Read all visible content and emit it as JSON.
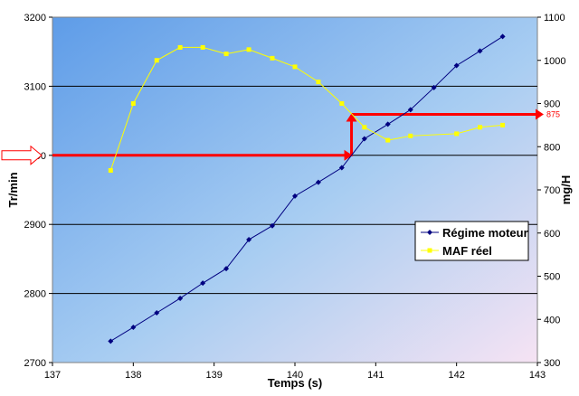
{
  "chart_data": {
    "type": "line",
    "title": "",
    "xlabel": "Temps (s)",
    "ylabel": "Tr/min",
    "y2label": "mg/H",
    "xlim": [
      137,
      143
    ],
    "ylim": [
      2700,
      3200
    ],
    "y2lim": [
      300,
      1100
    ],
    "x_ticks": [
      "137",
      "138",
      "139",
      "140",
      "141",
      "142",
      "143"
    ],
    "y_ticks": [
      "2700",
      "2800",
      "2900",
      "3000",
      "3100",
      "3200"
    ],
    "y2_ticks": [
      "300",
      "400",
      "500",
      "600",
      "700",
      "800",
      "900",
      "1000",
      "1100"
    ],
    "grid": "horizontal",
    "legend_position": "right",
    "series": [
      {
        "name": "Régime moteur",
        "axis": "left",
        "color": "#000080",
        "marker": "diamond",
        "x": [
          137.72,
          138.0,
          138.29,
          138.58,
          138.86,
          139.15,
          139.43,
          139.72,
          140.0,
          140.29,
          140.58,
          140.86,
          141.15,
          141.43,
          141.72,
          142.0,
          142.29,
          142.57
        ],
        "y": [
          2731,
          2751,
          2772,
          2793,
          2815,
          2836,
          2878,
          2898,
          2941,
          2961,
          2982,
          3024,
          3045,
          3066,
          3098,
          3130,
          3151,
          3172
        ]
      },
      {
        "name": "MAF réel",
        "axis": "right",
        "color": "#ffff00",
        "marker": "square",
        "x": [
          137.72,
          138.0,
          138.29,
          138.58,
          138.86,
          139.15,
          139.43,
          139.72,
          140.0,
          140.29,
          140.58,
          140.86,
          141.15,
          141.43,
          142.0,
          142.29,
          142.57
        ],
        "y": [
          745,
          900,
          1000,
          1030,
          1030,
          1015,
          1025,
          1005,
          985,
          950,
          900,
          845,
          815,
          825,
          830,
          845,
          850
        ]
      }
    ],
    "annotations": {
      "left_marker_value": "3000",
      "right_marker_label": "875",
      "right_marker_value": 875,
      "transition_x": 140.7,
      "color": "#ff0000"
    }
  }
}
